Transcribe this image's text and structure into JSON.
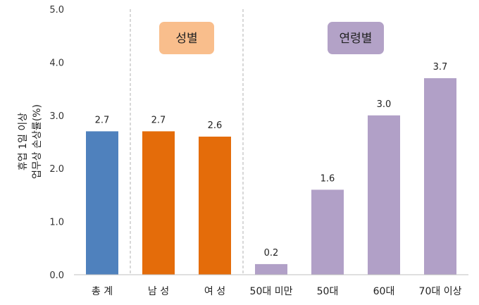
{
  "chart_data": {
    "type": "bar",
    "title": "",
    "ylabel_lines": [
      "휴업 1일 이상",
      "업무상 손상률(%)"
    ],
    "xlabel": "",
    "ylim": [
      0,
      5
    ],
    "yticks": [
      "0.0",
      "1.0",
      "2.0",
      "3.0",
      "4.0",
      "5.0"
    ],
    "grid": false,
    "categories": [
      "총 계",
      "남 성",
      "여 성",
      "50대 미만",
      "50대",
      "60대",
      "70대 이상"
    ],
    "values": [
      2.7,
      2.7,
      2.6,
      0.2,
      1.6,
      3.0,
      3.7
    ],
    "value_labels": [
      "2.7",
      "2.7",
      "2.6",
      "0.2",
      "1.6",
      "3.0",
      "3.7"
    ],
    "groups": [
      {
        "label": "성별",
        "start": 1,
        "end": 2,
        "box_color": "#f9be8c"
      },
      {
        "label": "연령별",
        "start": 3,
        "end": 6,
        "box_color": "#b3a2c7"
      }
    ],
    "bar_colors": [
      "#4f81bd",
      "#e46c0a",
      "#e46c0a",
      "#b1a0c7",
      "#b1a0c7",
      "#b1a0c7",
      "#b1a0c7"
    ]
  }
}
